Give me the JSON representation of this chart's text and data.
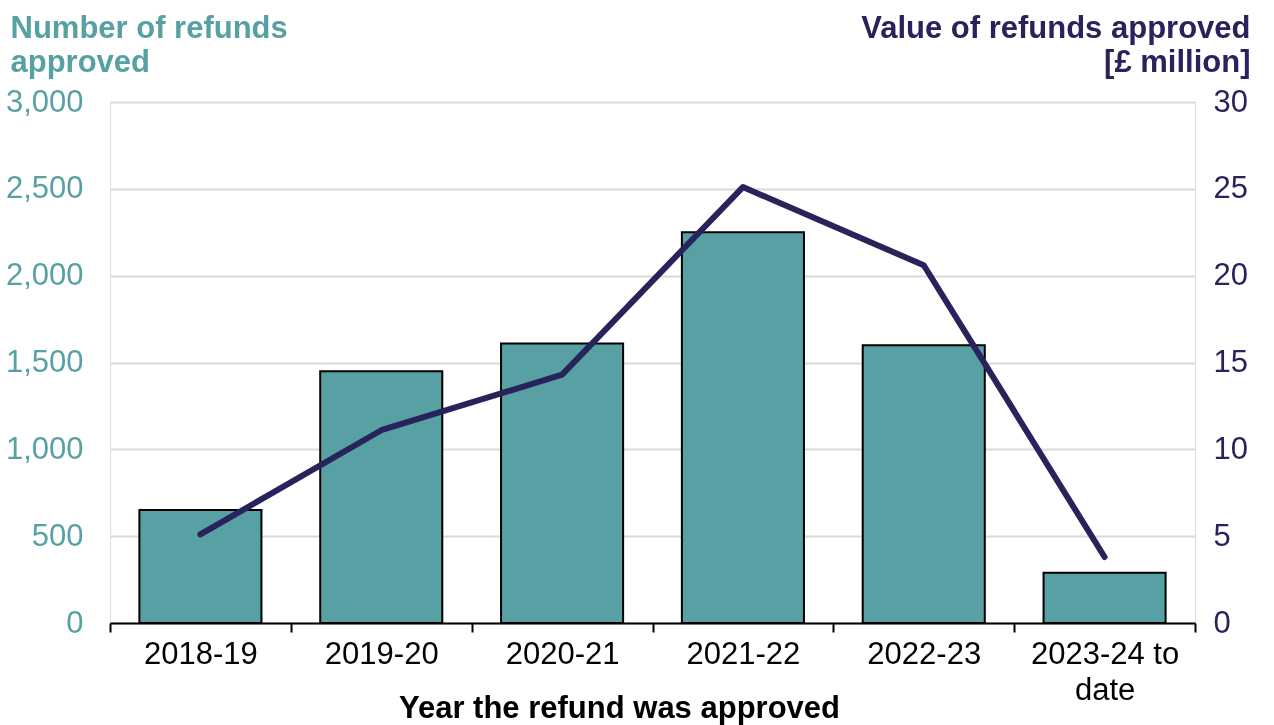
{
  "chart_data": {
    "type": "bar",
    "categories": [
      "2018-19",
      "2019-20",
      "2020-21",
      "2021-22",
      "2022-23",
      "2023-24 to date"
    ],
    "xlabel": "Year the refund was approved",
    "ylabel": "Number of refunds approved",
    "y2label": "Value of refunds approved [£ million]",
    "ylim": [
      0,
      3000
    ],
    "yticks": [
      0,
      500,
      {
        "value": 1000,
        "label": "1,000"
      },
      {
        "value": 1500,
        "label": "1,500"
      },
      {
        "value": 2000,
        "label": "2,000"
      },
      {
        "value": 2500,
        "label": "2,500"
      },
      {
        "value": 3000,
        "label": "3,000"
      }
    ],
    "y2lim": [
      0,
      30
    ],
    "y2ticks": [
      0,
      5,
      10,
      15,
      20,
      25,
      30
    ],
    "grid": "y",
    "series": [
      {
        "color": "#57a0a3",
        "values": [
          650,
          1450,
          1610,
          2250,
          1600,
          290
        ]
      },
      {
        "type": "line",
        "axis": "y2",
        "color": "#29235c",
        "values": [
          5.1,
          11.1,
          14.3,
          25.1,
          20.6,
          3.8
        ]
      }
    ]
  }
}
